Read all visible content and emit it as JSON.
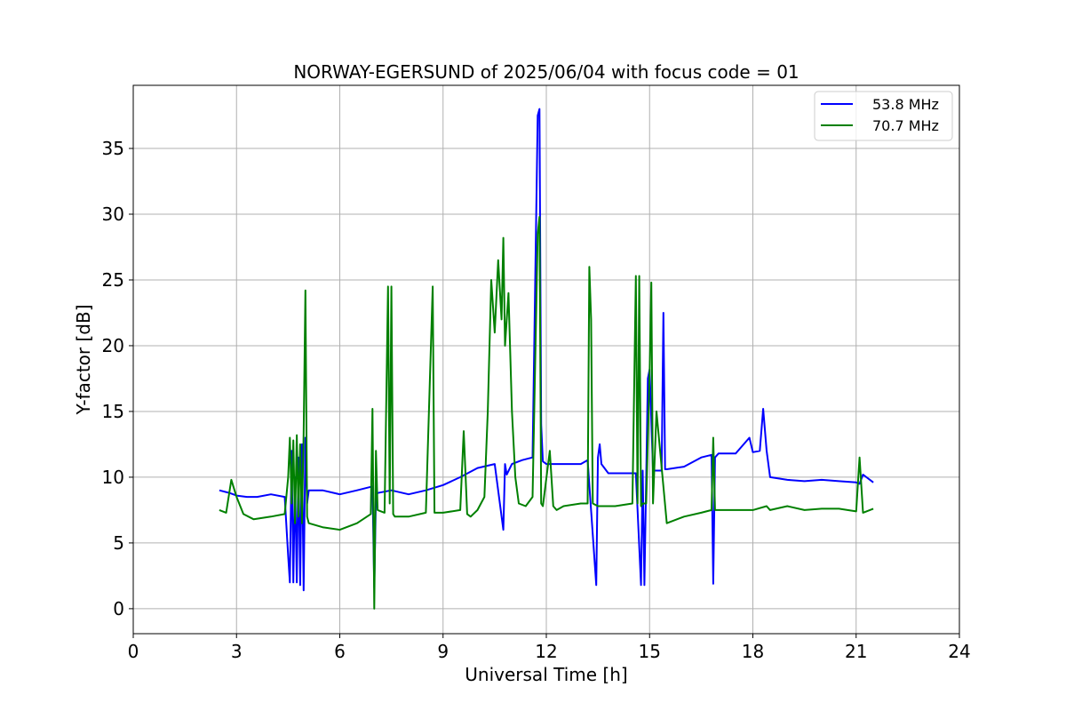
{
  "chart_data": {
    "type": "line",
    "title": "NORWAY-EGERSUND of 2025/06/04 with focus code = 01",
    "xlabel": "Universal Time [h]",
    "ylabel": "Y-factor [dB]",
    "xlim": [
      0,
      24
    ],
    "ylim": [
      -1.9,
      39.8
    ],
    "xticks": [
      0,
      3,
      6,
      9,
      12,
      15,
      18,
      21,
      24
    ],
    "yticks": [
      0,
      5,
      10,
      15,
      20,
      25,
      30,
      35
    ],
    "grid": true,
    "legend_position": "top-right",
    "series": [
      {
        "name": "53.8 MHz",
        "color": "#0000ff",
        "x": [
          2.5,
          2.8,
          3.0,
          3.3,
          3.6,
          4.0,
          4.4,
          4.5,
          4.55,
          4.6,
          4.65,
          4.7,
          4.75,
          4.8,
          4.85,
          4.9,
          4.95,
          5.0,
          5.05,
          5.1,
          5.5,
          6.0,
          6.5,
          6.95,
          7.0,
          7.05,
          7.1,
          7.5,
          8.0,
          8.5,
          9.0,
          9.5,
          10.0,
          10.5,
          10.75,
          10.8,
          10.85,
          11.0,
          11.3,
          11.6,
          11.75,
          11.8,
          11.85,
          11.9,
          12.0,
          12.3,
          12.6,
          13.0,
          13.2,
          13.45,
          13.5,
          13.55,
          13.6,
          13.8,
          14.2,
          14.6,
          14.75,
          14.8,
          14.85,
          14.95,
          15.0,
          15.1,
          15.35,
          15.4,
          15.45,
          15.5,
          16.0,
          16.5,
          16.8,
          16.85,
          16.9,
          17.0,
          17.5,
          17.9,
          18.0,
          18.2,
          18.3,
          18.4,
          18.5,
          19.0,
          19.5,
          20.0,
          20.5,
          21.0,
          21.1,
          21.2,
          21.5
        ],
        "y": [
          9.0,
          8.8,
          8.6,
          8.5,
          8.5,
          8.7,
          8.5,
          4.0,
          2.0,
          12.0,
          2.0,
          10.0,
          2.0,
          11.5,
          1.8,
          12.5,
          1.4,
          13.0,
          8.0,
          9.0,
          9.0,
          8.7,
          9.0,
          9.3,
          1.6,
          8.5,
          8.8,
          9.0,
          8.7,
          9.0,
          9.4,
          10.0,
          10.7,
          11.0,
          6.0,
          11.0,
          10.2,
          11.0,
          11.3,
          11.5,
          37.5,
          38.0,
          14.0,
          11.2,
          11.0,
          11.0,
          11.0,
          11.0,
          11.3,
          1.8,
          11.5,
          12.5,
          11.0,
          10.3,
          10.3,
          10.3,
          1.8,
          10.5,
          1.8,
          17.5,
          18.2,
          10.5,
          10.5,
          22.5,
          10.6,
          10.6,
          10.8,
          11.5,
          11.7,
          1.9,
          11.5,
          11.8,
          11.8,
          13.0,
          11.9,
          12.0,
          15.2,
          12.0,
          10.0,
          9.8,
          9.7,
          9.8,
          9.7,
          9.6,
          9.5,
          10.2,
          9.6
        ]
      },
      {
        "name": "70.7 MHz",
        "color": "#008000",
        "x": [
          2.5,
          2.7,
          2.85,
          3.0,
          3.2,
          3.5,
          4.0,
          4.4,
          4.5,
          4.55,
          4.6,
          4.65,
          4.7,
          4.75,
          4.8,
          4.85,
          4.9,
          4.95,
          5.0,
          5.05,
          5.1,
          5.5,
          6.0,
          6.5,
          6.9,
          6.95,
          7.0,
          7.05,
          7.1,
          7.3,
          7.4,
          7.45,
          7.5,
          7.55,
          7.6,
          8.0,
          8.5,
          8.7,
          8.75,
          8.8,
          9.0,
          9.5,
          9.6,
          9.7,
          9.8,
          10.0,
          10.2,
          10.3,
          10.4,
          10.5,
          10.6,
          10.7,
          10.75,
          10.8,
          10.9,
          11.0,
          11.1,
          11.2,
          11.4,
          11.6,
          11.75,
          11.8,
          11.85,
          11.9,
          12.1,
          12.2,
          12.3,
          12.5,
          13.0,
          13.2,
          13.25,
          13.3,
          13.35,
          13.5,
          14.0,
          14.5,
          14.6,
          14.65,
          14.7,
          14.75,
          14.8,
          14.9,
          15.0,
          15.05,
          15.1,
          15.2,
          15.5,
          16.0,
          16.5,
          16.8,
          16.85,
          16.9,
          17.0,
          17.5,
          18.0,
          18.4,
          18.5,
          19.0,
          19.5,
          20.0,
          20.5,
          21.0,
          21.1,
          21.2,
          21.5
        ],
        "y": [
          7.5,
          7.3,
          9.8,
          8.5,
          7.2,
          6.8,
          7.0,
          7.2,
          10.0,
          13.0,
          8.0,
          12.8,
          6.5,
          13.2,
          7.0,
          12.5,
          6.5,
          13.3,
          24.2,
          7.0,
          6.5,
          6.2,
          6.0,
          6.5,
          7.2,
          15.2,
          0.0,
          12.0,
          7.5,
          7.3,
          24.5,
          8.0,
          24.5,
          7.2,
          7.0,
          7.0,
          7.3,
          24.5,
          7.3,
          7.3,
          7.3,
          7.5,
          13.5,
          7.2,
          7.0,
          7.5,
          8.5,
          15.0,
          25.0,
          21.0,
          26.5,
          22.0,
          28.2,
          20.0,
          24.0,
          15.0,
          10.0,
          8.0,
          7.8,
          8.5,
          28.5,
          29.8,
          8.0,
          7.8,
          12.0,
          7.8,
          7.5,
          7.8,
          8.0,
          8.0,
          26.0,
          22.0,
          8.0,
          7.8,
          7.8,
          8.0,
          25.3,
          8.0,
          25.3,
          7.8,
          8.0,
          8.0,
          18.0,
          24.8,
          8.0,
          15.0,
          6.5,
          7.0,
          7.3,
          7.5,
          13.0,
          7.5,
          7.5,
          7.5,
          7.5,
          7.8,
          7.5,
          7.8,
          7.5,
          7.6,
          7.6,
          7.4,
          11.5,
          7.3,
          7.6
        ]
      }
    ]
  }
}
